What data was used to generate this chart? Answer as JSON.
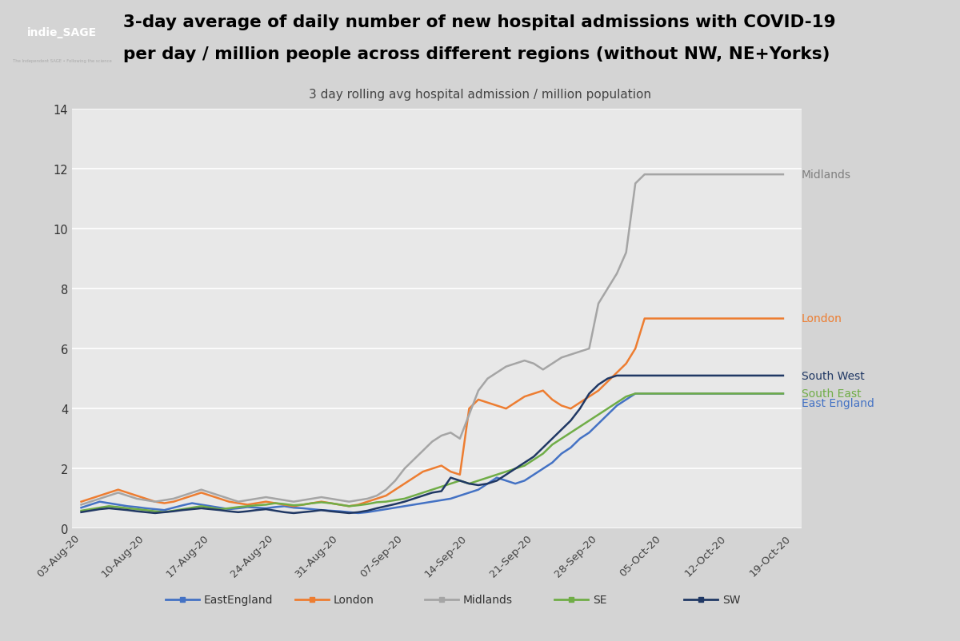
{
  "title_line1": "3-day average of daily number of new hospital admissions with COVID-19",
  "title_line2": "per day / million people across different regions (without NW, NE+Yorks)",
  "subtitle": "3 day rolling avg hospital admission / million population",
  "background_color": "#d4d4d4",
  "plot_bg_color": "#e8e8e8",
  "ylim": [
    0,
    14
  ],
  "yticks": [
    0,
    2,
    4,
    6,
    8,
    10,
    12,
    14
  ],
  "x_labels": [
    "03-Aug-20",
    "10-Aug-20",
    "17-Aug-20",
    "24-Aug-20",
    "31-Aug-20",
    "07-Sep-20",
    "14-Sep-20",
    "21-Sep-20",
    "28-Sep-20",
    "05-Oct-20",
    "12-Oct-20",
    "19-Oct-20"
  ],
  "series": {
    "EastEngland": {
      "color": "#4472c4",
      "label": "EastEngland",
      "annotation": "East England",
      "annotation_color": "#4472c4",
      "values": [
        0.7,
        0.8,
        0.9,
        0.85,
        0.8,
        0.75,
        0.72,
        0.68,
        0.65,
        0.62,
        0.7,
        0.78,
        0.85,
        0.8,
        0.75,
        0.7,
        0.65,
        0.68,
        0.72,
        0.7,
        0.68,
        0.72,
        0.75,
        0.7,
        0.68,
        0.65,
        0.62,
        0.6,
        0.58,
        0.55,
        0.52,
        0.55,
        0.6,
        0.65,
        0.7,
        0.75,
        0.8,
        0.85,
        0.9,
        0.95,
        1.0,
        1.1,
        1.2,
        1.3,
        1.5,
        1.7,
        1.6,
        1.5,
        1.6,
        1.8,
        2.0,
        2.2,
        2.5,
        2.7,
        3.0,
        3.2,
        3.5,
        3.8,
        4.1,
        4.3,
        4.5,
        4.5,
        4.5,
        4.5,
        4.5,
        4.5,
        4.5,
        4.5,
        4.5,
        4.5,
        4.5,
        4.5,
        4.5,
        4.5,
        4.5,
        4.5,
        4.5,
        4.5
      ]
    },
    "London": {
      "color": "#ed7d31",
      "label": "London",
      "annotation": "London",
      "annotation_color": "#ed7d31",
      "values": [
        0.9,
        1.0,
        1.1,
        1.2,
        1.3,
        1.2,
        1.1,
        1.0,
        0.9,
        0.85,
        0.9,
        1.0,
        1.1,
        1.2,
        1.1,
        1.0,
        0.9,
        0.85,
        0.8,
        0.85,
        0.9,
        0.85,
        0.8,
        0.75,
        0.8,
        0.85,
        0.9,
        0.85,
        0.8,
        0.75,
        0.8,
        0.9,
        1.0,
        1.1,
        1.3,
        1.5,
        1.7,
        1.9,
        2.0,
        2.1,
        1.9,
        1.8,
        4.0,
        4.3,
        4.2,
        4.1,
        4.0,
        4.2,
        4.4,
        4.5,
        4.6,
        4.3,
        4.1,
        4.0,
        4.2,
        4.4,
        4.6,
        4.9,
        5.2,
        5.5,
        6.0,
        7.0,
        7.0,
        7.0,
        7.0,
        7.0,
        7.0,
        7.0,
        7.0,
        7.0,
        7.0,
        7.0,
        7.0,
        7.0,
        7.0,
        7.0,
        7.0,
        7.0
      ]
    },
    "Midlands": {
      "color": "#a5a5a5",
      "label": "Midlands",
      "annotation": "Midlands",
      "annotation_color": "#808080",
      "values": [
        0.8,
        0.9,
        1.0,
        1.1,
        1.2,
        1.1,
        1.0,
        0.95,
        0.9,
        0.95,
        1.0,
        1.1,
        1.2,
        1.3,
        1.2,
        1.1,
        1.0,
        0.9,
        0.95,
        1.0,
        1.05,
        1.0,
        0.95,
        0.9,
        0.95,
        1.0,
        1.05,
        1.0,
        0.95,
        0.9,
        0.95,
        1.0,
        1.1,
        1.3,
        1.6,
        2.0,
        2.3,
        2.6,
        2.9,
        3.1,
        3.2,
        3.0,
        3.8,
        4.6,
        5.0,
        5.2,
        5.4,
        5.5,
        5.6,
        5.5,
        5.3,
        5.5,
        5.7,
        5.8,
        5.9,
        6.0,
        7.5,
        8.0,
        8.5,
        9.2,
        11.5,
        11.8,
        11.8,
        11.8,
        11.8,
        11.8,
        11.8,
        11.8,
        11.8,
        11.8,
        11.8,
        11.8,
        11.8,
        11.8,
        11.8,
        11.8,
        11.8,
        11.8
      ]
    },
    "SE": {
      "color": "#70ad47",
      "label": "SE",
      "annotation": "South East",
      "annotation_color": "#70ad47",
      "values": [
        0.6,
        0.65,
        0.7,
        0.75,
        0.72,
        0.68,
        0.65,
        0.62,
        0.58,
        0.55,
        0.6,
        0.65,
        0.7,
        0.75,
        0.7,
        0.65,
        0.68,
        0.72,
        0.75,
        0.78,
        0.8,
        0.85,
        0.82,
        0.78,
        0.8,
        0.85,
        0.88,
        0.85,
        0.8,
        0.75,
        0.78,
        0.82,
        0.88,
        0.9,
        0.95,
        1.0,
        1.1,
        1.2,
        1.3,
        1.4,
        1.5,
        1.6,
        1.5,
        1.6,
        1.7,
        1.8,
        1.9,
        2.0,
        2.1,
        2.3,
        2.5,
        2.8,
        3.0,
        3.2,
        3.4,
        3.6,
        3.8,
        4.0,
        4.2,
        4.4,
        4.5,
        4.5,
        4.5,
        4.5,
        4.5,
        4.5,
        4.5,
        4.5,
        4.5,
        4.5,
        4.5,
        4.5,
        4.5,
        4.5,
        4.5,
        4.5,
        4.5,
        4.5
      ]
    },
    "SW": {
      "color": "#203864",
      "label": "SW",
      "annotation": "South West",
      "annotation_color": "#203864",
      "values": [
        0.55,
        0.6,
        0.65,
        0.68,
        0.65,
        0.62,
        0.58,
        0.55,
        0.52,
        0.55,
        0.58,
        0.62,
        0.65,
        0.68,
        0.65,
        0.62,
        0.58,
        0.55,
        0.58,
        0.62,
        0.65,
        0.6,
        0.55,
        0.52,
        0.55,
        0.58,
        0.62,
        0.58,
        0.55,
        0.52,
        0.55,
        0.6,
        0.68,
        0.75,
        0.82,
        0.9,
        1.0,
        1.1,
        1.2,
        1.25,
        1.7,
        1.6,
        1.5,
        1.45,
        1.5,
        1.6,
        1.8,
        2.0,
        2.2,
        2.4,
        2.7,
        3.0,
        3.3,
        3.6,
        4.0,
        4.5,
        4.8,
        5.0,
        5.1,
        5.1,
        5.1,
        5.1,
        5.1,
        5.1,
        5.1,
        5.1,
        5.1,
        5.1,
        5.1,
        5.1,
        5.1,
        5.1,
        5.1,
        5.1,
        5.1,
        5.1,
        5.1,
        5.1
      ]
    }
  },
  "legend_items": [
    "EastEngland",
    "London",
    "Midlands",
    "SE",
    "SW"
  ],
  "legend_colors": [
    "#4472c4",
    "#ed7d31",
    "#a5a5a5",
    "#70ad47",
    "#203864"
  ],
  "annotations": [
    {
      "text": "Midlands",
      "y": 11.8,
      "color": "#808080"
    },
    {
      "text": "London",
      "y": 7.0,
      "color": "#ed7d31"
    },
    {
      "text": "South West",
      "y": 5.1,
      "color": "#203864"
    },
    {
      "text": "South East",
      "y": 4.5,
      "color": "#70ad47"
    },
    {
      "text": "East England",
      "y": 4.2,
      "color": "#4472c4"
    }
  ]
}
